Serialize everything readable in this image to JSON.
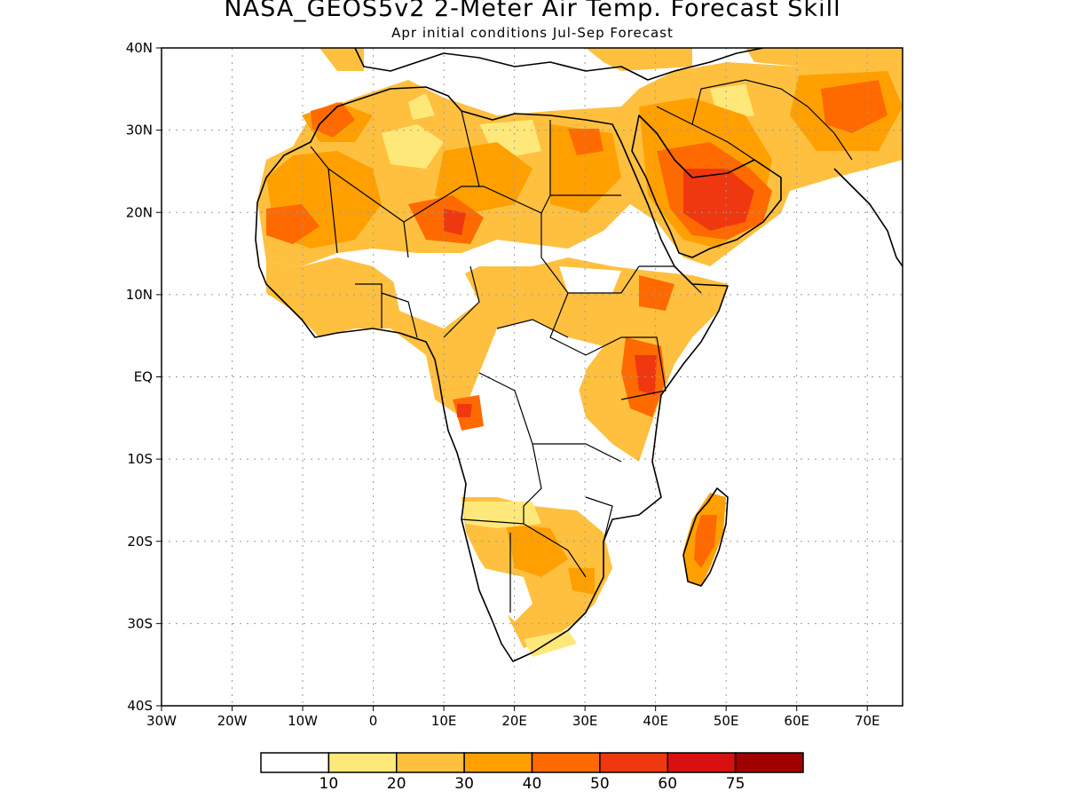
{
  "title": "NASA_GEOS5v2 2-Meter Air Temp. Forecast Skill",
  "subtitle": "Apr initial conditions  Jul-Sep Forecast",
  "map": {
    "lon_range": [
      -30,
      75
    ],
    "lat_range": [
      -40,
      40
    ],
    "lat_ticks": [
      {
        "value": 40,
        "label": "40N"
      },
      {
        "value": 30,
        "label": "30N"
      },
      {
        "value": 20,
        "label": "20N"
      },
      {
        "value": 10,
        "label": "10N"
      },
      {
        "value": 0,
        "label": "EQ"
      },
      {
        "value": -10,
        "label": "10S"
      },
      {
        "value": -20,
        "label": "20S"
      },
      {
        "value": -30,
        "label": "30S"
      },
      {
        "value": -40,
        "label": "40S"
      }
    ],
    "lon_ticks": [
      {
        "value": -30,
        "label": "30W"
      },
      {
        "value": -20,
        "label": "20W"
      },
      {
        "value": -10,
        "label": "10W"
      },
      {
        "value": 0,
        "label": "0"
      },
      {
        "value": 10,
        "label": "10E"
      },
      {
        "value": 20,
        "label": "20E"
      },
      {
        "value": 30,
        "label": "30E"
      },
      {
        "value": 40,
        "label": "40E"
      },
      {
        "value": 50,
        "label": "50E"
      },
      {
        "value": 60,
        "label": "60E"
      },
      {
        "value": 70,
        "label": "70E"
      }
    ],
    "grid": "dotted"
  },
  "colorbar": {
    "colors": [
      "#ffffff",
      "#ffe87a",
      "#ffc040",
      "#ffa000",
      "#ff6a00",
      "#f03810",
      "#d81010",
      "#a00000"
    ],
    "labels": [
      "10",
      "20",
      "30",
      "40",
      "50",
      "60",
      "75"
    ]
  }
}
